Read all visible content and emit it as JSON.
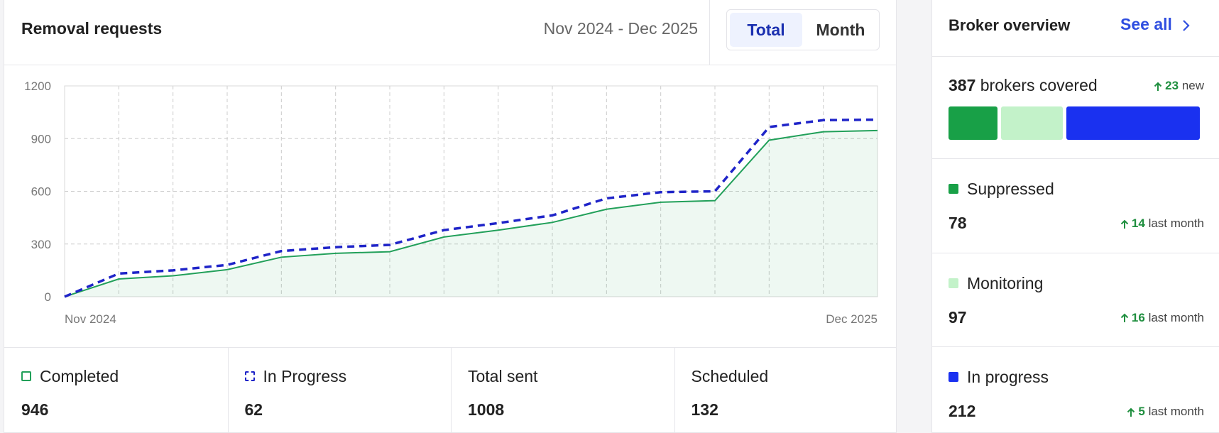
{
  "header": {
    "title": "Removal requests",
    "date_range": "Nov 2024 - Dec 2025",
    "tabs": [
      "Total",
      "Month"
    ],
    "active_tab": 0
  },
  "chart_data": {
    "type": "line",
    "categories": [
      "Nov 2024",
      null,
      null,
      null,
      null,
      null,
      null,
      null,
      null,
      null,
      null,
      null,
      null,
      null,
      null,
      "Dec 2025"
    ],
    "series": [
      {
        "name": "Completed",
        "color": "#22a05a",
        "style": "solid",
        "fill": true,
        "values": [
          0,
          101,
          119,
          154,
          225,
          247,
          256,
          340,
          379,
          423,
          498,
          538,
          547,
          891,
          939,
          946
        ]
      },
      {
        "name": "In Progress",
        "color": "#1f24c8",
        "style": "dashed",
        "fill": false,
        "values": [
          0,
          132,
          150,
          181,
          260,
          282,
          295,
          379,
          419,
          463,
          560,
          595,
          600,
          966,
          1005,
          1008
        ]
      }
    ],
    "ylim": [
      0,
      1200
    ],
    "yticks": [
      0,
      300,
      600,
      900,
      1200
    ],
    "grid": true
  },
  "stats": [
    {
      "value": 946
    },
    {
      "value": 62
    },
    {
      "label": "Total sent",
      "value": 1008
    },
    {
      "label": "Scheduled",
      "value": 132
    }
  ],
  "broker_overview": {
    "title": "Broker overview",
    "see_all": "See all",
    "covered_count": 387,
    "covered_label": "brokers covered",
    "new_count": 23,
    "new_label": "new",
    "items": [
      {
        "name": "Suppressed",
        "color": "#18a047",
        "value": 78,
        "change": 14,
        "change_label": "last month"
      },
      {
        "name": "Monitoring",
        "color": "#c3f2c9",
        "value": 97,
        "change": 16,
        "change_label": "last month"
      },
      {
        "name": "In progress",
        "color": "#1a31f0",
        "value": 212,
        "change": 5,
        "change_label": "last month"
      }
    ]
  }
}
